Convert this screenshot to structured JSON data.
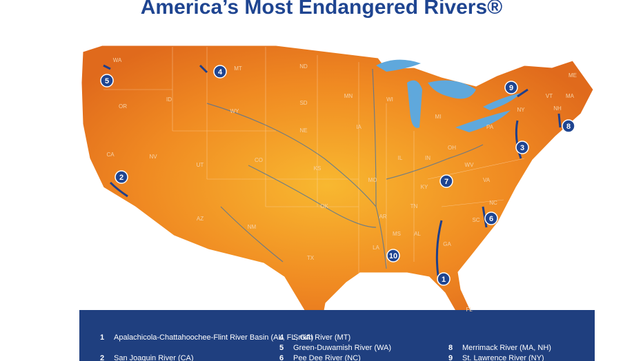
{
  "header": {
    "title": "America’s Most Endangered Rivers®"
  },
  "states": [
    "WA",
    "OR",
    "ID",
    "MT",
    "CA",
    "NV",
    "UT",
    "AZ",
    "WY",
    "CO",
    "NM",
    "ND",
    "SD",
    "NE",
    "KS",
    "OK",
    "TX",
    "MN",
    "IA",
    "MO",
    "AR",
    "LA",
    "WI",
    "IL",
    "MI",
    "IN",
    "OH",
    "KY",
    "TN",
    "MS",
    "AL",
    "GA",
    "FL",
    "SC",
    "NC",
    "VA",
    "WV",
    "PA",
    "NY",
    "VT",
    "NH",
    "ME",
    "MA"
  ],
  "markers": [
    "1",
    "2",
    "3",
    "4",
    "5",
    "6",
    "7",
    "8",
    "9",
    "10"
  ],
  "legend": [
    {
      "number": "1",
      "name": "Apalachicola-Chattahoochee-Flint River Basin (AL, FL, GA)"
    },
    {
      "number": "2",
      "name": "San Joaquin River (CA)"
    },
    {
      "number": "4",
      "name": "Smith River (MT)"
    },
    {
      "number": "5",
      "name": "Green-Duwamish River (WA)"
    },
    {
      "number": "6",
      "name": "Pee Dee River (NC)"
    },
    {
      "number": "8",
      "name": "Merrimack River (MA, NH)"
    },
    {
      "number": "9",
      "name": "St. Lawrence River (NY)"
    }
  ]
}
